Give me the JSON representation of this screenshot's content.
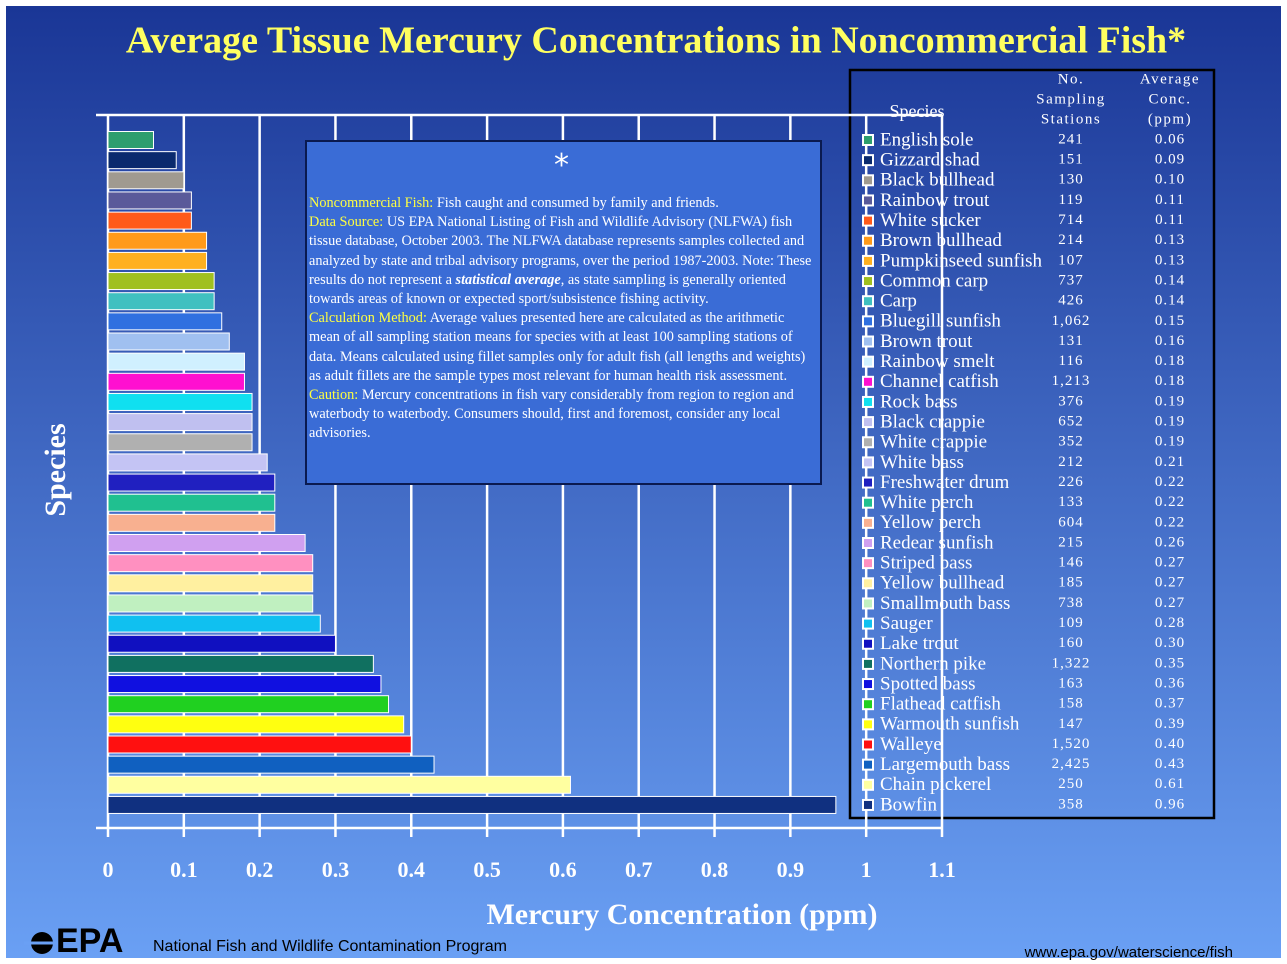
{
  "chart_data": {
    "type": "bar",
    "orientation": "horizontal",
    "title": "Average Tissue Mercury Concentrations in Noncommercial Fish*",
    "xlabel": "Mercury Concentration (ppm)",
    "ylabel": "Species",
    "categories": [
      "English sole",
      "Gizzard shad",
      "Black bullhead",
      "Rainbow trout",
      "White sucker",
      "Brown bullhead",
      "Pumpkinseed sunfish",
      "Common carp",
      "Carp",
      "Bluegill sunfish",
      "Brown trout",
      "Rainbow smelt",
      "Channel catfish",
      "Rock bass",
      "Black crappie",
      "White crappie",
      "White bass",
      "Freshwater drum",
      "White perch",
      "Yellow perch",
      "Redear sunfish",
      "Striped bass",
      "Yellow bullhead",
      "Smallmouth bass",
      "Sauger",
      "Lake trout",
      "Northern pike",
      "Spotted bass",
      "Flathead catfish",
      "Warmouth sunfish",
      "Walleye",
      "Largemouth bass",
      "Chain pickerel",
      "Bowfin"
    ],
    "values": [
      0.06,
      0.09,
      0.1,
      0.11,
      0.11,
      0.13,
      0.13,
      0.14,
      0.14,
      0.15,
      0.16,
      0.18,
      0.18,
      0.19,
      0.19,
      0.19,
      0.21,
      0.22,
      0.22,
      0.22,
      0.26,
      0.27,
      0.27,
      0.27,
      0.28,
      0.3,
      0.35,
      0.36,
      0.37,
      0.39,
      0.4,
      0.43,
      0.61,
      0.96
    ],
    "value_labels": [
      "0.06",
      "0.09",
      "0.10",
      "0.11",
      "0.11",
      "0.13",
      "0.13",
      "0.14",
      "0.14",
      "0.15",
      "0.16",
      "0.18",
      "0.18",
      "0.19",
      "0.19",
      "0.19",
      "0.21",
      "0.22",
      "0.22",
      "0.22",
      "0.26",
      "0.27",
      "0.27",
      "0.27",
      "0.28",
      "0.30",
      "0.35",
      "0.36",
      "0.37",
      "0.39",
      "0.40",
      "0.43",
      "0.61",
      "0.96"
    ],
    "sampling_stations": [
      "241",
      "151",
      "130",
      "119",
      "714",
      "214",
      "107",
      "737",
      "426",
      "1,062",
      "131",
      "116",
      "1,213",
      "376",
      "652",
      "352",
      "212",
      "226",
      "133",
      "604",
      "215",
      "146",
      "185",
      "738",
      "109",
      "160",
      "1,322",
      "163",
      "158",
      "147",
      "1,520",
      "2,425",
      "250",
      "358"
    ],
    "colors": [
      "#2e9e6e",
      "#0a2a6e",
      "#a09a90",
      "#5a5a9a",
      "#ff5a1a",
      "#ff9a1a",
      "#ffb020",
      "#a0c020",
      "#40c0c0",
      "#3070e0",
      "#a0c0f0",
      "#d0f0ff",
      "#ff10d0",
      "#10e0f0",
      "#c0c0f0",
      "#b0b0b0",
      "#c4c4f4",
      "#2020c0",
      "#20c090",
      "#f8b090",
      "#d0a0f0",
      "#ff90c0",
      "#fff0a0",
      "#c0f0c0",
      "#10c0f0",
      "#1010c0",
      "#107060",
      "#1010e0",
      "#20d020",
      "#ffff10",
      "#ff1010",
      "#1060c0",
      "#ffffa0",
      "#103080"
    ],
    "table_headers": {
      "species": "Species",
      "stations": [
        "No.",
        "Sampling",
        "Stations"
      ],
      "conc": [
        "Average",
        "Conc.",
        "(ppm)"
      ]
    },
    "xlim": [
      0,
      1.1
    ],
    "xticks": [
      0,
      0.1,
      0.2,
      0.3,
      0.4,
      0.5,
      0.6,
      0.7,
      0.8,
      0.9,
      1,
      1.1
    ],
    "grid": true
  },
  "note": {
    "symbol": "*",
    "paragraphs": [
      {
        "label": "Noncommercial Fish:",
        "text": "Fish caught and consumed by family and friends."
      },
      {
        "label": "Data Source:",
        "text": "US EPA National Listing of Fish and Wildlife Advisory (NLFWA) fish tissue database, October 2003. The NLFWA database represents samples collected and analyzed by state and tribal advisory programs, over the period 1987-2003. Note: These results do not represent a",
        "emphasis": "statistical average",
        "text_after": ", as state sampling is generally oriented towards areas of known or expected sport/subsistence fishing activity."
      },
      {
        "label": "Calculation Method:",
        "text": "Average values presented here are calculated as the arithmetic mean of all sampling station means for species with at least 100 sampling stations of data. Means calculated using fillet samples only for adult fish (all lengths and weights) as adult fillets are the sample types most relevant for human health risk assessment."
      },
      {
        "label": "Caution:",
        "text": "Mercury concentrations in fish vary considerably from region to region and waterbody to waterbody. Consumers should, first and foremost, consider any local advisories."
      }
    ]
  },
  "footer": {
    "logo": "EPA",
    "program": "National Fish and Wildlife Contamination Program",
    "url": "www.epa.gov/waterscience/fish"
  }
}
